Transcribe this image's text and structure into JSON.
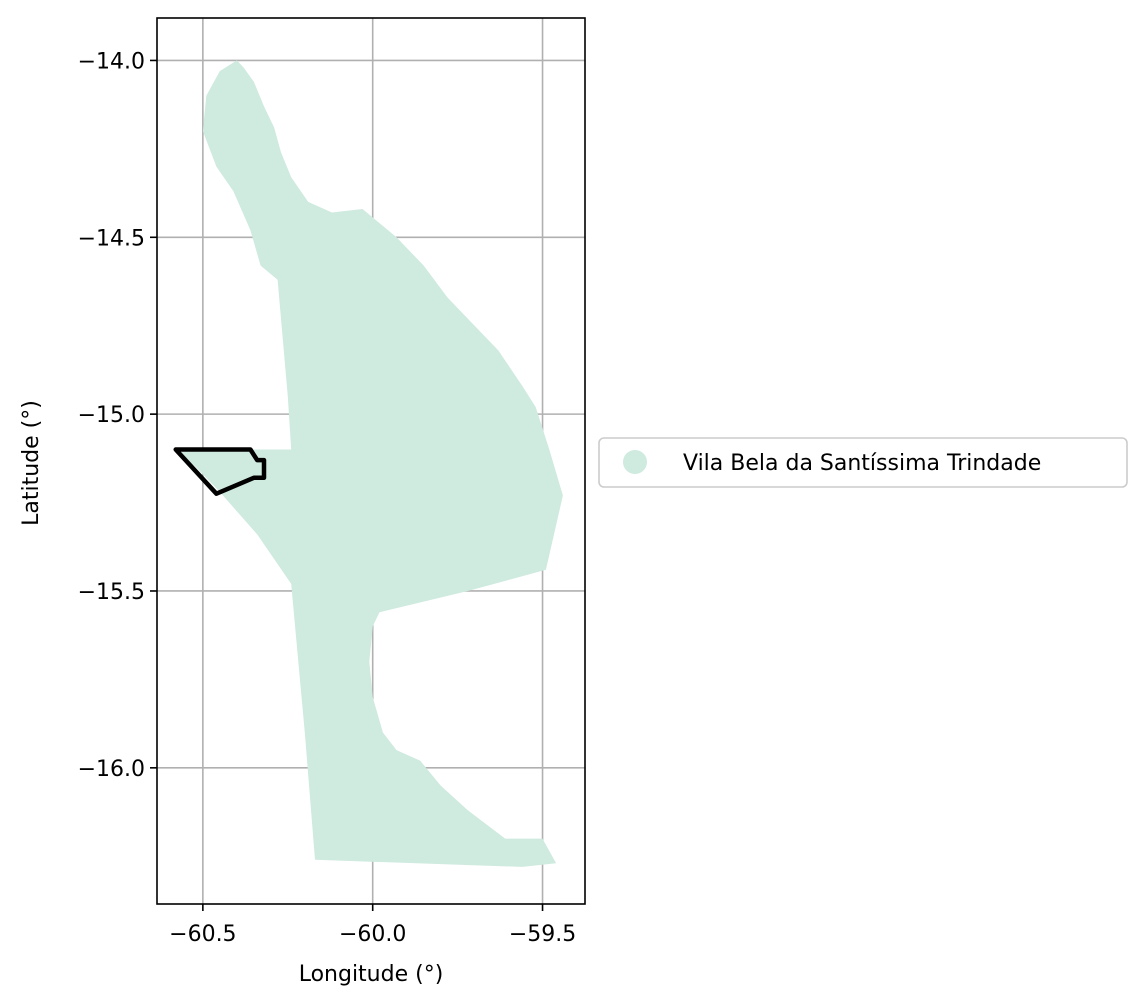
{
  "colors": {
    "region_fill": "#cfeadf",
    "outline": "#000000",
    "grid": "#b0b0b0",
    "axes": "#000000",
    "legend_border": "#cccccc"
  },
  "axes": {
    "xlabel": "Longitude (°)",
    "ylabel": "Latitude (°)",
    "xlim": [
      -60.635,
      -59.375
    ],
    "ylim": [
      -16.385,
      -13.88
    ],
    "grid": true
  },
  "chart_data": {
    "type": "map",
    "x_ticks": [
      -60.5,
      -60.0,
      -59.5
    ],
    "y_ticks": [
      -14.0,
      -14.5,
      -15.0,
      -15.5,
      -16.0
    ],
    "x_tick_labels": [
      "−60.5",
      "−60.0",
      "−59.5"
    ],
    "y_tick_labels": [
      "−14.0",
      "−14.5",
      "−15.0",
      "−15.5",
      "−16.0"
    ],
    "legend": {
      "placement": "center-left outside",
      "entries": [
        "Vila Bela da Santíssima Trindade"
      ]
    },
    "region": {
      "name": "Vila Bela da Santíssima Trindade",
      "polygon": [
        [
          -60.4,
          -14.0
        ],
        [
          -60.38,
          -14.02
        ],
        [
          -60.35,
          -14.06
        ],
        [
          -60.32,
          -14.13
        ],
        [
          -60.29,
          -14.19
        ],
        [
          -60.27,
          -14.26
        ],
        [
          -60.24,
          -14.33
        ],
        [
          -60.19,
          -14.4
        ],
        [
          -60.12,
          -14.43
        ],
        [
          -60.03,
          -14.42
        ],
        [
          -59.93,
          -14.5
        ],
        [
          -59.85,
          -14.58
        ],
        [
          -59.78,
          -14.67
        ],
        [
          -59.7,
          -14.75
        ],
        [
          -59.63,
          -14.82
        ],
        [
          -59.56,
          -14.92
        ],
        [
          -59.52,
          -14.98
        ],
        [
          -59.48,
          -15.1
        ],
        [
          -59.44,
          -15.23
        ],
        [
          -59.49,
          -15.44
        ],
        [
          -59.72,
          -15.5
        ],
        [
          -59.98,
          -15.56
        ],
        [
          -60.0,
          -15.6
        ],
        [
          -60.01,
          -15.7
        ],
        [
          -60.0,
          -15.8
        ],
        [
          -59.97,
          -15.9
        ],
        [
          -59.93,
          -15.95
        ],
        [
          -59.86,
          -15.98
        ],
        [
          -59.8,
          -16.05
        ],
        [
          -59.72,
          -16.12
        ],
        [
          -59.61,
          -16.2
        ],
        [
          -59.5,
          -16.2
        ],
        [
          -59.46,
          -16.27
        ],
        [
          -59.56,
          -16.28
        ],
        [
          -60.17,
          -16.26
        ],
        [
          -60.2,
          -15.9
        ],
        [
          -60.24,
          -15.48
        ],
        [
          -60.34,
          -15.34
        ],
        [
          -60.45,
          -15.22
        ],
        [
          -60.52,
          -15.15
        ],
        [
          -60.58,
          -15.1
        ],
        [
          -60.24,
          -15.1
        ],
        [
          -60.25,
          -14.95
        ],
        [
          -60.28,
          -14.62
        ],
        [
          -60.33,
          -14.58
        ],
        [
          -60.36,
          -14.48
        ],
        [
          -60.41,
          -14.37
        ],
        [
          -60.46,
          -14.3
        ],
        [
          -60.5,
          -14.2
        ],
        [
          -60.49,
          -14.1
        ],
        [
          -60.45,
          -14.03
        ]
      ]
    },
    "outline_polygon": {
      "polygon": [
        [
          -60.58,
          -15.1
        ],
        [
          -60.36,
          -15.1
        ],
        [
          -60.34,
          -15.13
        ],
        [
          -60.32,
          -15.13
        ],
        [
          -60.32,
          -15.18
        ],
        [
          -60.35,
          -15.18
        ],
        [
          -60.46,
          -15.225
        ]
      ]
    }
  }
}
